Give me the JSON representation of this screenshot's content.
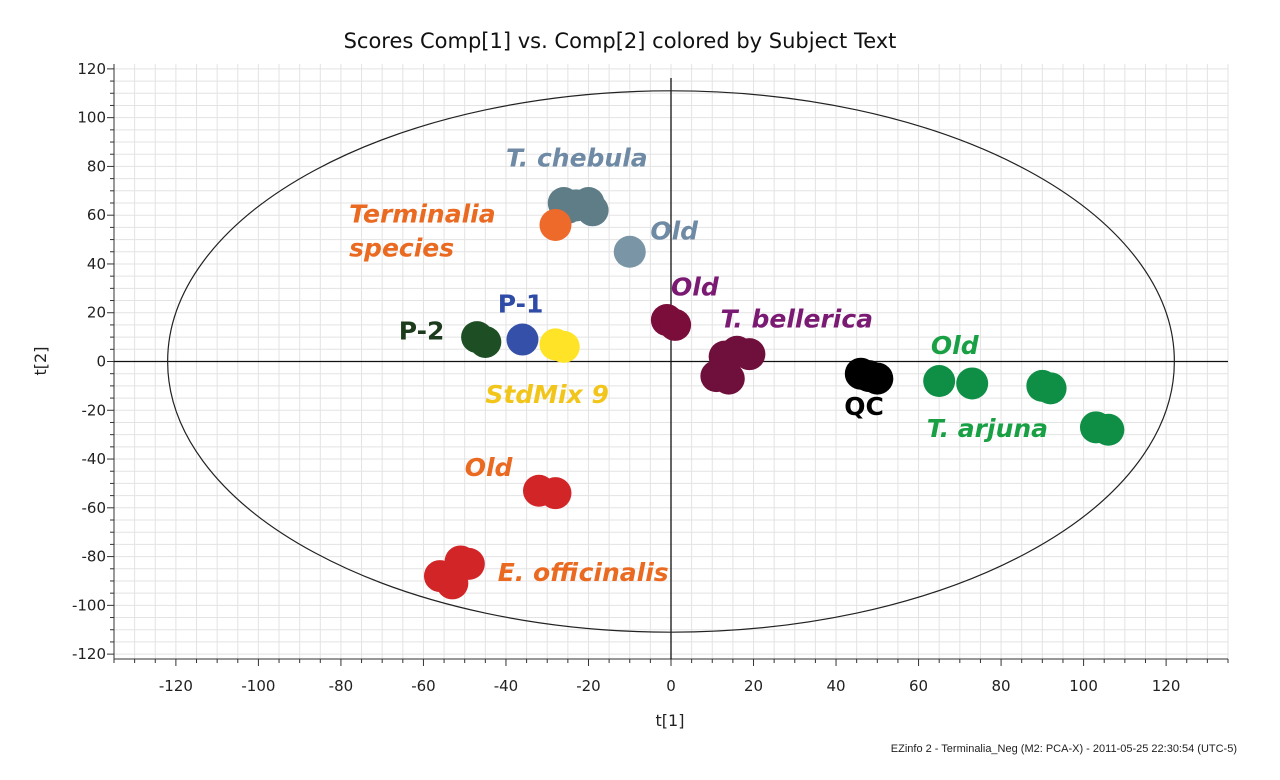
{
  "chart_data": {
    "type": "scatter",
    "title": "Scores Comp[1] vs. Comp[2] colored by Subject Text",
    "xlabel": "t[1]",
    "ylabel": "t[2]",
    "xlim": [
      -135,
      135
    ],
    "ylim": [
      -122,
      122
    ],
    "xticks": [
      -120,
      -100,
      -80,
      -60,
      -40,
      -20,
      0,
      20,
      40,
      60,
      80,
      100,
      120
    ],
    "yticks": [
      -120,
      -100,
      -80,
      -60,
      -40,
      -20,
      0,
      20,
      40,
      60,
      80,
      100,
      120
    ],
    "grid": true,
    "ellipse": {
      "rx": 122,
      "ry": 111
    },
    "series": [
      {
        "color": "#5f7d87",
        "points": [
          [
            -26,
            65
          ],
          [
            -25,
            63
          ],
          [
            -20,
            65
          ],
          [
            -19,
            62
          ],
          [
            -23,
            64
          ]
        ]
      },
      {
        "color": "#ee6a2a",
        "points": [
          [
            -28,
            56
          ]
        ]
      },
      {
        "color": "#7a95a6",
        "points": [
          [
            -10,
            45
          ]
        ]
      },
      {
        "color": "#7b0d3a",
        "points": [
          [
            -1,
            17
          ],
          [
            1,
            15
          ]
        ]
      },
      {
        "color": "#6f0f3b",
        "points": [
          [
            13,
            2
          ],
          [
            16,
            4
          ],
          [
            19,
            3
          ],
          [
            11,
            -6
          ],
          [
            14,
            -7
          ]
        ]
      },
      {
        "color": "#1e4f24",
        "points": [
          [
            -47,
            10
          ],
          [
            -45,
            8
          ]
        ]
      },
      {
        "color": "#3550a8",
        "points": [
          [
            -36,
            9
          ]
        ]
      },
      {
        "color": "#ffe326",
        "points": [
          [
            -28,
            7
          ],
          [
            -26,
            6
          ]
        ]
      },
      {
        "color": "#000000",
        "points": [
          [
            46,
            -5
          ],
          [
            48,
            -6
          ],
          [
            50,
            -7
          ]
        ]
      },
      {
        "color": "#0f8f45",
        "points": [
          [
            65,
            -8
          ],
          [
            73,
            -9
          ],
          [
            90,
            -10
          ],
          [
            92,
            -11
          ],
          [
            103,
            -27
          ],
          [
            106,
            -28
          ]
        ]
      },
      {
        "color": "#d22528",
        "points": [
          [
            -32,
            -53
          ],
          [
            -28,
            -54
          ],
          [
            -51,
            -82
          ],
          [
            -49,
            -83
          ],
          [
            -56,
            -88
          ],
          [
            -53,
            -91
          ]
        ]
      }
    ],
    "labels": [
      {
        "text": "T. chebula",
        "color": "#6f8aa5",
        "italic": true
      },
      {
        "text": "Terminalia",
        "color": "#ea6a21",
        "italic": true
      },
      {
        "text": "species",
        "color": "#ea6a21",
        "italic": true
      },
      {
        "text": "Old",
        "color": "#6f8aa5",
        "italic": true
      },
      {
        "text": "Old",
        "color": "#7b1a73",
        "italic": true
      },
      {
        "text": "T. bellerica",
        "color": "#7b1a73",
        "italic": true
      },
      {
        "text": "P-1",
        "color": "#2e4ba8",
        "italic": false
      },
      {
        "text": "P-2",
        "color": "#1c3b1c",
        "italic": false
      },
      {
        "text": "StdMix 9",
        "color": "#f2c51b",
        "italic": true
      },
      {
        "text": "Old",
        "color": "#19a044",
        "italic": true
      },
      {
        "text": "QC",
        "color": "#000000",
        "italic": false
      },
      {
        "text": "T. arjuna",
        "color": "#19a044",
        "italic": true
      },
      {
        "text": "Old",
        "color": "#ea6a21",
        "italic": true
      },
      {
        "text": "E. officinalis",
        "color": "#ea6a21",
        "italic": true
      }
    ]
  },
  "footer": "EZinfo 2 - Terminalia_Neg (M2: PCA-X) - 2011-05-25 22:30:54 (UTC-5)"
}
